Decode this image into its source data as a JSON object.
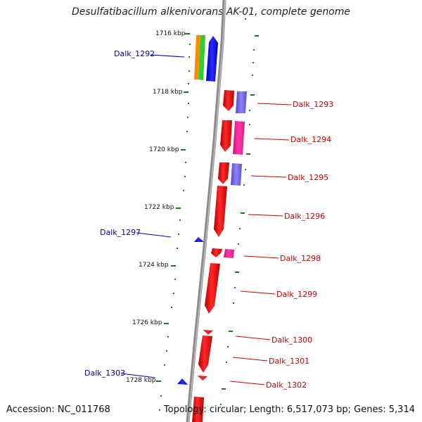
{
  "title": "Desulfatibacillum alkenivorans AK-01, complete genome",
  "accession": "Accession: NC_011768",
  "topology": "Topology: circular; Length: 6,517,073 bp; Genes: 5,314",
  "ticks": [
    "1716 kbp",
    "1718 kbp",
    "1720 kbp",
    "1722 kbp",
    "1724 kbp",
    "1726 kbp",
    "1728 kbp"
  ],
  "genes": [
    {
      "name": "Dalk_1292",
      "strand": "minus"
    },
    {
      "name": "Dalk_1293",
      "strand": "plus"
    },
    {
      "name": "Dalk_1294",
      "strand": "plus"
    },
    {
      "name": "Dalk_1295",
      "strand": "plus"
    },
    {
      "name": "Dalk_1296",
      "strand": "plus"
    },
    {
      "name": "Dalk_1297",
      "strand": "minus"
    },
    {
      "name": "Dalk_1298",
      "strand": "plus"
    },
    {
      "name": "Dalk_1299",
      "strand": "plus"
    },
    {
      "name": "Dalk_1300",
      "strand": "plus"
    },
    {
      "name": "Dalk_1301",
      "strand": "plus"
    },
    {
      "name": "Dalk_1302",
      "strand": "plus"
    },
    {
      "name": "Dalk_1303",
      "strand": "minus"
    }
  ],
  "colors": {
    "plus": "#ff0000",
    "minus": "#0000ff",
    "track": "#808080",
    "ticks": "#1a7a1a",
    "accent_orange": "#ff8c00",
    "accent_green": "#33cc33",
    "accent_purple": "#7b68ee",
    "accent_magenta": "#ff1493"
  }
}
